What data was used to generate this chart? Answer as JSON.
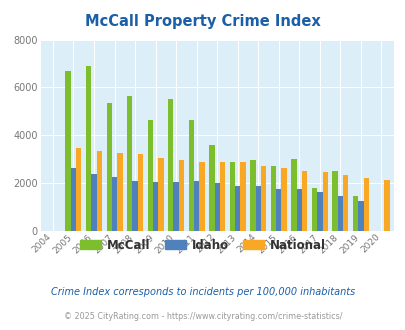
{
  "title": "McCall Property Crime Index",
  "years": [
    2004,
    2005,
    2006,
    2007,
    2008,
    2009,
    2010,
    2011,
    2012,
    2013,
    2014,
    2015,
    2016,
    2017,
    2018,
    2019,
    2020
  ],
  "mccall": [
    0,
    6700,
    6900,
    5350,
    5650,
    4650,
    5500,
    4650,
    3600,
    2900,
    2950,
    2700,
    3000,
    1800,
    2500,
    1450,
    0
  ],
  "idaho": [
    0,
    2650,
    2400,
    2250,
    2100,
    2050,
    2050,
    2100,
    2000,
    1900,
    1900,
    1750,
    1750,
    1650,
    1450,
    1250,
    0
  ],
  "national": [
    0,
    3450,
    3350,
    3250,
    3200,
    3050,
    2950,
    2900,
    2900,
    2900,
    2700,
    2650,
    2500,
    2450,
    2350,
    2200,
    2150
  ],
  "mccall_color": "#7dbe2e",
  "idaho_color": "#4f81bd",
  "national_color": "#f9a825",
  "bg_color": "#dceef8",
  "ylim": [
    0,
    8000
  ],
  "yticks": [
    0,
    2000,
    4000,
    6000,
    8000
  ],
  "footnote1": "Crime Index corresponds to incidents per 100,000 inhabitants",
  "footnote2": "© 2025 CityRating.com - https://www.cityrating.com/crime-statistics/",
  "title_color": "#1a5fa8",
  "footnote1_color": "#1a5fa8",
  "footnote2_color": "#999999",
  "legend_text_color": "#333333"
}
